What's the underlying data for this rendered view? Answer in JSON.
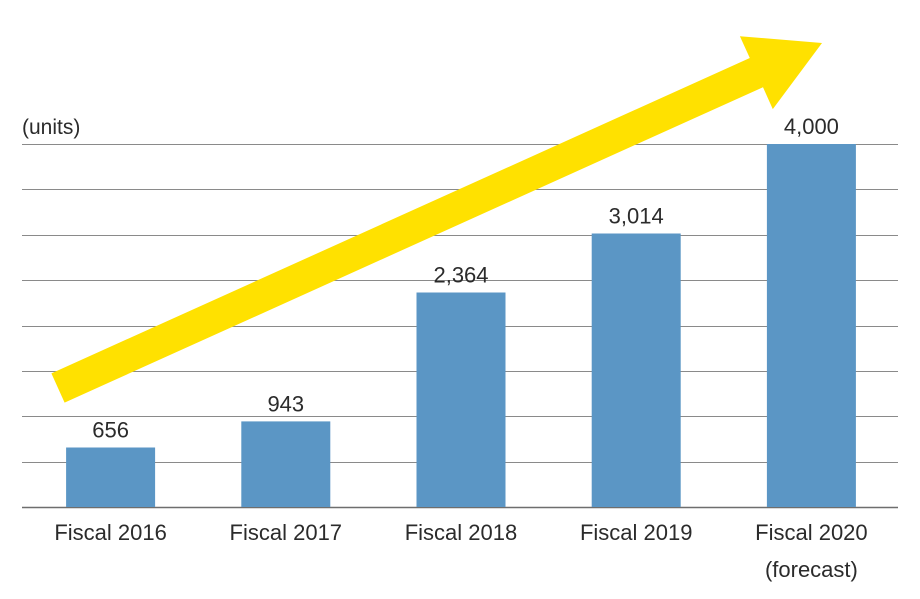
{
  "chart_data": {
    "type": "bar",
    "categories": [
      "Fiscal 2016",
      "Fiscal 2017",
      "Fiscal 2018",
      "Fiscal 2019",
      "Fiscal 2020"
    ],
    "category_sublabels": [
      "",
      "",
      "",
      "",
      "(forecast)"
    ],
    "values": [
      656,
      943,
      2364,
      3014,
      4000
    ],
    "value_labels": [
      "656",
      "943",
      "2,364",
      "3,014",
      "4,000"
    ],
    "unit_label": "(units)",
    "ylim": [
      0,
      4000
    ],
    "grid": true,
    "gridline_step": 500,
    "title": "",
    "xlabel": "",
    "ylabel": "",
    "trend_arrow": true,
    "colors": {
      "bar": "#5b96c5",
      "arrow": "#ffe100",
      "grid": "#8a8a8a",
      "text": "#2b2b2b"
    }
  }
}
